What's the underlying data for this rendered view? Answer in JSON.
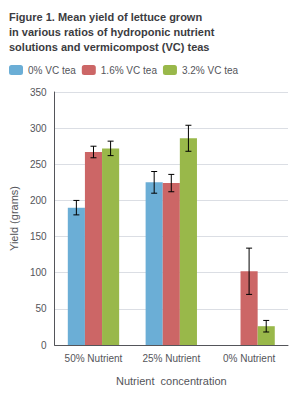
{
  "chart_data": {
    "type": "bar",
    "title": "Figure 1. Mean yield of lettuce grown\nin various ratios of hydroponic nutrient\nsolutions and vermicompost (VC) teas",
    "categories": [
      "50% Nutrient",
      "25% Nutrient",
      "0% Nutrient"
    ],
    "series": [
      {
        "name": "0% VC tea",
        "color": "#6baed6",
        "values": [
          190,
          225,
          0
        ],
        "errors": [
          10,
          15,
          0
        ]
      },
      {
        "name": "1.6% VC tea",
        "color": "#cc6666",
        "values": [
          267,
          224,
          102
        ],
        "errors": [
          8,
          12,
          32
        ]
      },
      {
        "name": "3.2% VC tea",
        "color": "#99b84a",
        "values": [
          272,
          286,
          26
        ],
        "errors": [
          10,
          18,
          8
        ]
      }
    ],
    "xlabel": "Nutrient  concentration",
    "ylabel": "Yield (grams)",
    "ylim": [
      0,
      350
    ],
    "yticks": [
      0,
      50,
      100,
      150,
      200,
      250,
      300,
      350
    ],
    "grid": true,
    "legend": "upper left"
  }
}
